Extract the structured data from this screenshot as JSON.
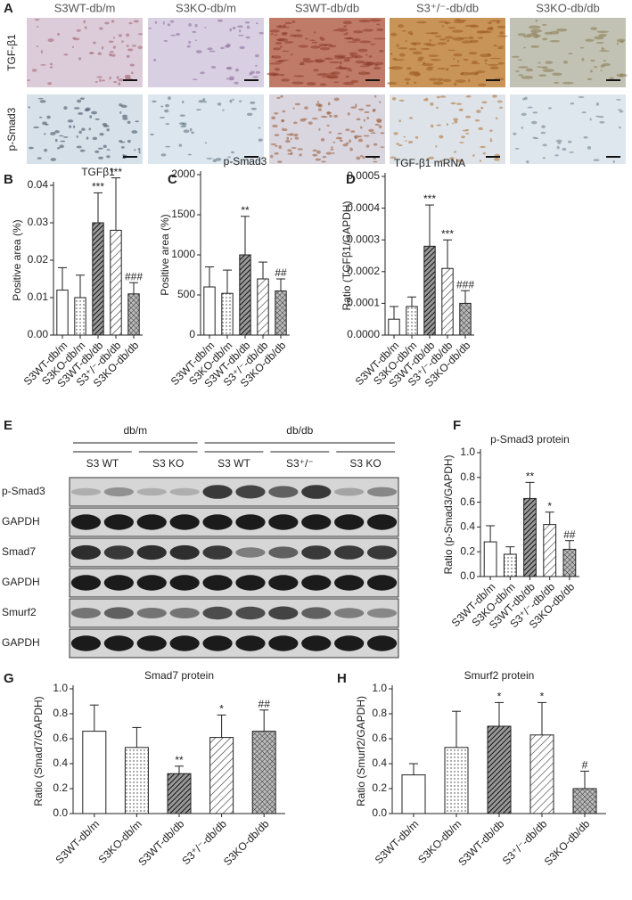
{
  "panel_a": {
    "label": "A",
    "columns": [
      "S3WT-db/m",
      "S3KO-db/m",
      "S3WT-db/db",
      "S3⁺/⁻-db/db",
      "S3KO-db/db"
    ],
    "rows": [
      "TGF-β1",
      "p-Smad3"
    ]
  },
  "panel_e": {
    "label": "E",
    "groups": [
      "db/m",
      "db/db"
    ],
    "lanes": [
      "S3 WT",
      "S3 KO",
      "S3 WT",
      "S3⁺/⁻",
      "S3 KO"
    ],
    "rows": [
      "p-Smad3",
      "GAPDH",
      "Smad7",
      "GAPDH",
      "Smurf2",
      "GAPDH"
    ]
  },
  "chart_data": [
    {
      "type": "bar",
      "label": "B",
      "title": "TGFβ1",
      "y_label": "Positive area (%)",
      "categories": [
        "S3WT-db/m",
        "S3KO-db/m",
        "S3WT-db/db",
        "S3⁺/⁻-db/db",
        "S3KO-db/db"
      ],
      "values": [
        0.012,
        0.01,
        0.03,
        0.028,
        0.011
      ],
      "errors": [
        0.006,
        0.006,
        0.008,
        0.014,
        0.003
      ],
      "annotations": [
        null,
        null,
        "***",
        "***",
        "###"
      ],
      "ylim": [
        0,
        0.04
      ],
      "yticks": [
        {
          "value": 0,
          "label": "0.00"
        },
        0.01,
        0.02,
        0.03,
        0.04
      ]
    },
    {
      "type": "bar",
      "label": "C",
      "title": "p-Smad3",
      "y_label": "Positive area (%)",
      "categories": [
        "S3WT-db/m",
        "S3KO-db/m",
        "S3WT-db/db",
        "S3⁺/⁻-db/db",
        "S3KO-db/db"
      ],
      "values": [
        600,
        520,
        1000,
        700,
        550
      ],
      "errors": [
        250,
        290,
        480,
        210,
        150
      ],
      "annotations": [
        null,
        null,
        "**",
        null,
        "##"
      ],
      "ylim": [
        0,
        2000
      ],
      "yticks": [
        0,
        500,
        1000,
        1500,
        2000
      ]
    },
    {
      "type": "bar",
      "label": "D",
      "title": "TGF-β1 mRNA",
      "y_label": "Ratio (TGFβ1/GAPDH)",
      "categories": [
        "S3WT-db/m",
        "S3KO-db/m",
        "S3WT-db/db",
        "S3⁺/⁻-db/db",
        "S3KO-db/db"
      ],
      "values": [
        5e-05,
        9e-05,
        0.00028,
        0.00021,
        0.0001
      ],
      "errors": [
        4e-05,
        3e-05,
        0.00013,
        9e-05,
        4e-05
      ],
      "annotations": [
        null,
        null,
        "***",
        "***",
        "###"
      ],
      "ylim": [
        0,
        0.0005
      ],
      "yticks": [
        {
          "value": 0,
          "label": "0.0000"
        },
        {
          "value": 0.0001,
          "label": "0.0001"
        },
        {
          "value": 0.0002,
          "label": "0.0002"
        },
        {
          "value": 0.0003,
          "label": "0.0003"
        },
        {
          "value": 0.0004,
          "label": "0.0004"
        },
        {
          "value": 0.0005,
          "label": "0.0005"
        }
      ]
    },
    {
      "type": "bar",
      "label": "F",
      "title": "p-Smad3 protein",
      "y_label": "Ratio (p-Smad3/GAPDH)",
      "categories": [
        "S3WT-db/m",
        "S3KO-db/m",
        "S3WT-db/db",
        "S3⁺/⁻-db/db",
        "S3KO-db/db"
      ],
      "values": [
        0.28,
        0.18,
        0.63,
        0.42,
        0.22
      ],
      "errors": [
        0.13,
        0.06,
        0.13,
        0.1,
        0.07
      ],
      "annotations": [
        null,
        null,
        "**",
        "*",
        "##"
      ],
      "ylim": [
        0,
        1
      ],
      "yticks": [
        {
          "value": 0,
          "label": "0.0"
        },
        0.2,
        0.4,
        0.6,
        0.8,
        {
          "value": 1,
          "label": "1.0"
        }
      ]
    },
    {
      "type": "bar",
      "label": "G",
      "title": "Smad7 protein",
      "y_label": "Ratio (Smad7/GAPDH)",
      "categories": [
        "S3WT-db/m",
        "S3KO-db/m",
        "S3WT-db/db",
        "S3⁺/⁻-db/db",
        "S3KO-db/db"
      ],
      "values": [
        0.66,
        0.53,
        0.32,
        0.61,
        0.66
      ],
      "errors": [
        0.21,
        0.16,
        0.06,
        0.18,
        0.17
      ],
      "annotations": [
        null,
        null,
        "**",
        "*",
        "##"
      ],
      "ylim": [
        0,
        1
      ],
      "yticks": [
        {
          "value": 0,
          "label": "0.0"
        },
        0.2,
        0.4,
        0.6,
        0.8,
        {
          "value": 1,
          "label": "1.0"
        }
      ]
    },
    {
      "type": "bar",
      "label": "H",
      "title": "Smurf2 protein",
      "y_label": "Ratio (Smurf2/GAPDH)",
      "categories": [
        "S3WT-db/m",
        "S3KO-db/m",
        "S3WT-db/db",
        "S3⁺/⁻-db/db",
        "S3KO-db/db"
      ],
      "values": [
        0.31,
        0.53,
        0.7,
        0.63,
        0.2
      ],
      "errors": [
        0.09,
        0.29,
        0.19,
        0.26,
        0.14
      ],
      "annotations": [
        null,
        null,
        "*",
        "*",
        "#"
      ],
      "ylim": [
        0,
        1
      ],
      "yticks": [
        {
          "value": 0,
          "label": "0.0"
        },
        0.2,
        0.4,
        0.6,
        0.8,
        {
          "value": 1,
          "label": "1.0"
        }
      ]
    }
  ]
}
